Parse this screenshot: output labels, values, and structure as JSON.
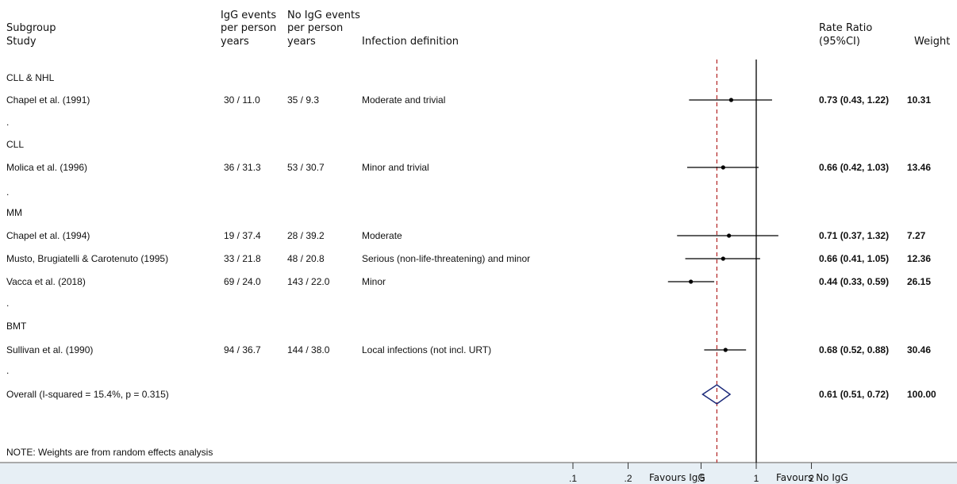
{
  "header": {
    "subgroup": "Subgroup",
    "study": "Study",
    "igg_events": "IgG events",
    "igg_pp": "per person",
    "igg_years": "years",
    "noigg_events": "No IgG events",
    "noigg_pp": "per person",
    "noigg_years": "years",
    "infection": "Infection definition",
    "rate_ratio": "Rate Ratio",
    "ci": "(95%CI)",
    "weight": "Weight"
  },
  "note": "NOTE: Weights are from random effects analysis",
  "favours_left": "Favours IgG",
  "favours_right": "Favours No IgG",
  "chart_data": {
    "type": "forest",
    "scale": "log",
    "xlim": [
      0.1,
      2
    ],
    "ticks": [
      ".1",
      ".2",
      ".5",
      "1",
      "2"
    ],
    "tick_values": [
      0.1,
      0.2,
      0.5,
      1,
      2
    ],
    "null_line": 1,
    "pooled_line": 0.61,
    "rows": [
      {
        "kind": "group",
        "label": "CLL & NHL"
      },
      {
        "kind": "study",
        "study": "Chapel et al. (1991)",
        "igg": "30 / 11.0",
        "noigg": "35 / 9.3",
        "definition": "Moderate and trivial",
        "rr": 0.73,
        "lo": 0.43,
        "hi": 1.22,
        "text": "0.73 (0.43, 1.22)",
        "weight": "10.31"
      },
      {
        "kind": "spacer",
        "label": "."
      },
      {
        "kind": "group",
        "label": "CLL"
      },
      {
        "kind": "study",
        "study": "Molica et al. (1996)",
        "igg": "36 / 31.3",
        "noigg": "53 / 30.7",
        "definition": "Minor and trivial",
        "rr": 0.66,
        "lo": 0.42,
        "hi": 1.03,
        "text": "0.66 (0.42, 1.03)",
        "weight": "13.46"
      },
      {
        "kind": "spacer",
        "label": "."
      },
      {
        "kind": "group",
        "label": "MM"
      },
      {
        "kind": "study",
        "study": "Chapel et al. (1994)",
        "igg": "19 / 37.4",
        "noigg": "28 / 39.2",
        "definition": "Moderate",
        "rr": 0.71,
        "lo": 0.37,
        "hi": 1.32,
        "text": "0.71 (0.37, 1.32)",
        "weight": "7.27"
      },
      {
        "kind": "study",
        "study": "Musto, Brugiatelli & Carotenuto (1995)",
        "igg": "33 / 21.8",
        "noigg": "48 / 20.8",
        "definition": "Serious (non-life-threatening) and minor",
        "rr": 0.66,
        "lo": 0.41,
        "hi": 1.05,
        "text": "0.66 (0.41, 1.05)",
        "weight": "12.36"
      },
      {
        "kind": "study",
        "study": "Vacca et al. (2018)",
        "igg": "69 / 24.0",
        "noigg": "143 / 22.0",
        "definition": "Minor",
        "rr": 0.44,
        "lo": 0.33,
        "hi": 0.59,
        "text": "0.44 (0.33, 0.59)",
        "weight": "26.15"
      },
      {
        "kind": "spacer",
        "label": "."
      },
      {
        "kind": "group",
        "label": "BMT"
      },
      {
        "kind": "study",
        "study": "Sullivan et al. (1990)",
        "igg": "94 / 36.7",
        "noigg": "144 / 38.0",
        "definition": "Local infections (not incl. URT)",
        "rr": 0.68,
        "lo": 0.52,
        "hi": 0.88,
        "text": "0.68 (0.52, 0.88)",
        "weight": "30.46"
      },
      {
        "kind": "spacer",
        "label": "."
      },
      {
        "kind": "overall",
        "study": "Overall  (I-squared = 15.4%, p = 0.315)",
        "rr": 0.61,
        "lo": 0.51,
        "hi": 0.72,
        "text": "0.61 (0.51, 0.72)",
        "weight": "100.00"
      }
    ]
  }
}
